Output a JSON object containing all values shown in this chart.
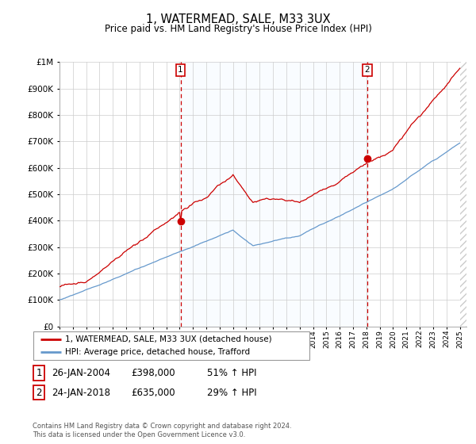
{
  "title": "1, WATERMEAD, SALE, M33 3UX",
  "subtitle": "Price paid vs. HM Land Registry's House Price Index (HPI)",
  "legend_line1": "1, WATERMEAD, SALE, M33 3UX (detached house)",
  "legend_line2": "HPI: Average price, detached house, Trafford",
  "footnote": "Contains HM Land Registry data © Crown copyright and database right 2024.\nThis data is licensed under the Open Government Licence v3.0.",
  "sale1_label": "1",
  "sale1_date": "26-JAN-2004",
  "sale1_price": "£398,000",
  "sale1_pct": "51% ↑ HPI",
  "sale1_x": 2004.07,
  "sale1_y": 398000,
  "sale2_label": "2",
  "sale2_date": "24-JAN-2018",
  "sale2_price": "£635,000",
  "sale2_pct": "29% ↑ HPI",
  "sale2_x": 2018.07,
  "sale2_y": 635000,
  "ylim": [
    0,
    1000000
  ],
  "xlim_left": 1995.0,
  "xlim_right": 2025.5,
  "red_color": "#cc0000",
  "blue_color": "#6699cc",
  "blue_fill": "#ddeeff",
  "background_color": "#ffffff",
  "grid_color": "#cccccc",
  "hatch_color": "#cccccc"
}
